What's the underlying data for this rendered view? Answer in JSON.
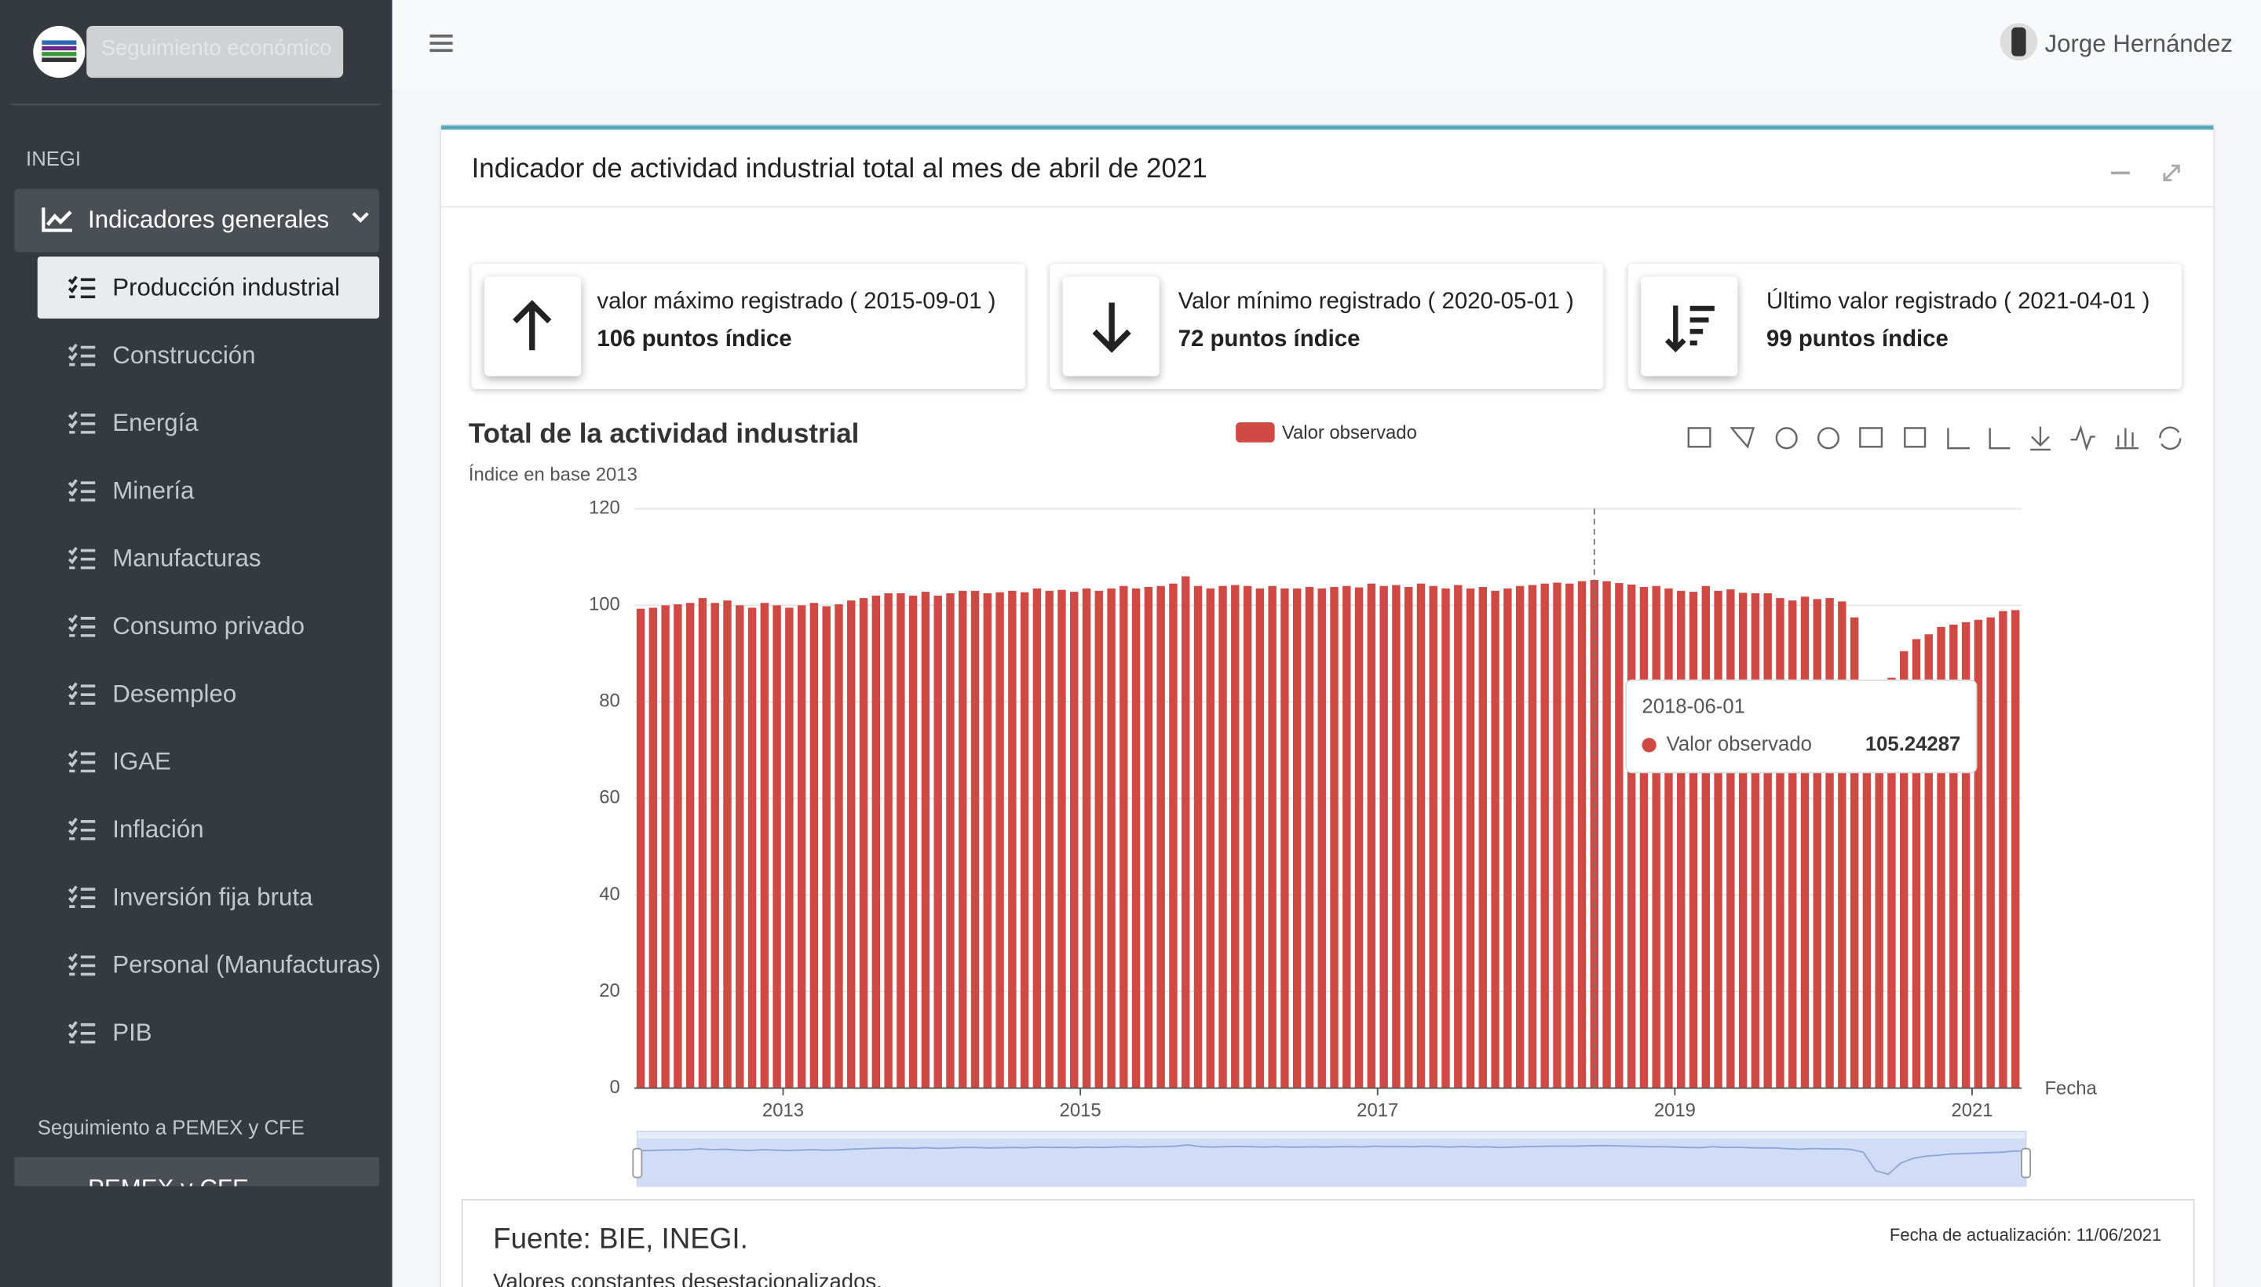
{
  "sidebar": {
    "search_placeholder": "Seguimiento económico",
    "section": "INEGI",
    "group": "Indicadores generales",
    "items": [
      "Producción industrial",
      "Construcción",
      "Energía",
      "Minería",
      "Manufacturas",
      "Consumo privado",
      "Desempleo",
      "IGAE",
      "Inflación",
      "Inversión fija bruta",
      "Personal (Manufacturas)",
      "PIB"
    ],
    "section2": "Seguimiento a PEMEX y CFE",
    "group2": "PEMEX y CFE"
  },
  "header": {
    "user": "Jorge Hernández"
  },
  "card": {
    "title": "Indicador de actividad industrial total al mes de abril de 2021"
  },
  "stats": [
    {
      "label": "valor máximo registrado ( 2015-09-01 )",
      "value": "106 puntos índice"
    },
    {
      "label": "Valor mínimo registrado ( 2020-05-01 )",
      "value": "72 puntos índice"
    },
    {
      "label": "Último valor registrado ( 2021-04-01 )",
      "value": "99 puntos índice"
    }
  ],
  "chart_data": {
    "type": "bar",
    "title": "Total de la actividad industrial",
    "subtitle": "Índice en base 2013",
    "x_label": "Fecha",
    "categories": [
      "2012-01-01",
      "2012-02-01",
      "2012-03-01",
      "2012-04-01",
      "2012-05-01",
      "2012-06-01",
      "2012-07-01",
      "2012-08-01",
      "2012-09-01",
      "2012-10-01",
      "2012-11-01",
      "2012-12-01",
      "2013-01-01",
      "2013-02-01",
      "2013-03-01",
      "2013-04-01",
      "2013-05-01",
      "2013-06-01",
      "2013-07-01",
      "2013-08-01",
      "2013-09-01",
      "2013-10-01",
      "2013-11-01",
      "2013-12-01",
      "2014-01-01",
      "2014-02-01",
      "2014-03-01",
      "2014-04-01",
      "2014-05-01",
      "2014-06-01",
      "2014-07-01",
      "2014-08-01",
      "2014-09-01",
      "2014-10-01",
      "2014-11-01",
      "2014-12-01",
      "2015-01-01",
      "2015-02-01",
      "2015-03-01",
      "2015-04-01",
      "2015-05-01",
      "2015-06-01",
      "2015-07-01",
      "2015-08-01",
      "2015-09-01",
      "2015-10-01",
      "2015-11-01",
      "2015-12-01",
      "2016-01-01",
      "2016-02-01",
      "2016-03-01",
      "2016-04-01",
      "2016-05-01",
      "2016-06-01",
      "2016-07-01",
      "2016-08-01",
      "2016-09-01",
      "2016-10-01",
      "2016-11-01",
      "2016-12-01",
      "2017-01-01",
      "2017-02-01",
      "2017-03-01",
      "2017-04-01",
      "2017-05-01",
      "2017-06-01",
      "2017-07-01",
      "2017-08-01",
      "2017-09-01",
      "2017-10-01",
      "2017-11-01",
      "2017-12-01",
      "2018-01-01",
      "2018-02-01",
      "2018-03-01",
      "2018-04-01",
      "2018-05-01",
      "2018-06-01",
      "2018-07-01",
      "2018-08-01",
      "2018-09-01",
      "2018-10-01",
      "2018-11-01",
      "2018-12-01",
      "2019-01-01",
      "2019-02-01",
      "2019-03-01",
      "2019-04-01",
      "2019-05-01",
      "2019-06-01",
      "2019-07-01",
      "2019-08-01",
      "2019-09-01",
      "2019-10-01",
      "2019-11-01",
      "2019-12-01",
      "2020-01-01",
      "2020-02-01",
      "2020-03-01",
      "2020-04-01",
      "2020-05-01",
      "2020-06-01",
      "2020-07-01",
      "2020-08-01",
      "2020-09-01",
      "2020-10-01",
      "2020-11-01",
      "2020-12-01",
      "2021-01-01",
      "2021-02-01",
      "2021-03-01",
      "2021-04-01"
    ],
    "series": [
      {
        "name": "Valor observado",
        "color": "#d04a45",
        "values": [
          99.3,
          99.5,
          100,
          100.2,
          100.5,
          101.5,
          100.5,
          101,
          100,
          99.5,
          100.5,
          100,
          99.5,
          100,
          100.5,
          99.8,
          100.2,
          101,
          101.5,
          102,
          102.5,
          102.5,
          102,
          102.8,
          102,
          102.5,
          103,
          103,
          102.5,
          102.7,
          103,
          102.7,
          103.5,
          103,
          103.2,
          102.8,
          103.5,
          103,
          103.5,
          104,
          103.5,
          103.8,
          104,
          104.5,
          106,
          104,
          103.5,
          104,
          104.2,
          104,
          103.5,
          104,
          103.5,
          103.5,
          103.8,
          103.5,
          103.8,
          104,
          103.7,
          104.5,
          104,
          104.2,
          103.8,
          104.5,
          104,
          103.5,
          104.2,
          103.5,
          103.8,
          103,
          103.5,
          104,
          104.2,
          104.5,
          104.7,
          104.5,
          105,
          105.24287,
          105,
          104.6,
          104.3,
          103.8,
          104,
          103.5,
          103,
          102.8,
          104,
          103,
          103.3,
          102.6,
          102.5,
          102.5,
          101.5,
          101,
          101.8,
          101.3,
          101.5,
          100.8,
          97.5,
          76,
          72,
          85,
          90.5,
          93,
          94,
          95.5,
          96,
          96.5,
          97,
          97.5,
          98.8,
          99
        ]
      }
    ],
    "ylim": [
      0,
      120
    ],
    "yticks": [
      0,
      20,
      40,
      60,
      80,
      100,
      120
    ],
    "xticks": [
      {
        "value": "2013-01-01",
        "label": "2013"
      },
      {
        "value": "2015-01-01",
        "label": "2015"
      },
      {
        "value": "2017-01-01",
        "label": "2017"
      },
      {
        "value": "2019-01-01",
        "label": "2019"
      },
      {
        "value": "2021-01-01",
        "label": "2021"
      }
    ],
    "grid": true
  },
  "footer": {
    "source": "Fuente: BIE, INEGI.",
    "updated": "Fecha de actualización: 11/06/2021",
    "note": "Valores constantes desestacionalizados."
  }
}
